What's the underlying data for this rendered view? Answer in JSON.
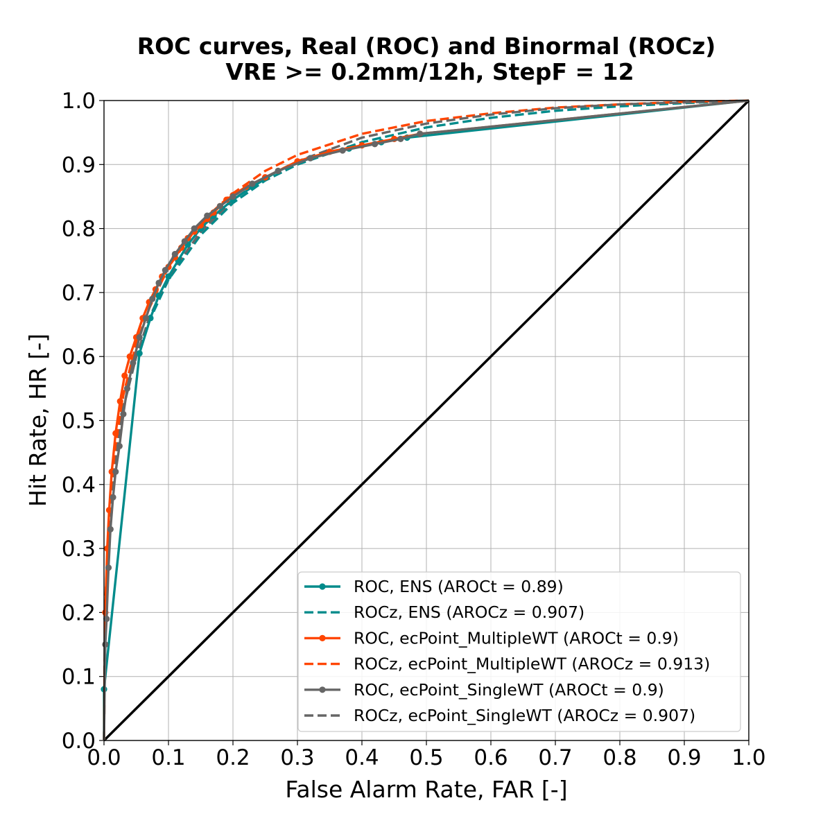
{
  "chart_data": {
    "type": "line",
    "title": "ROC curves, Real (ROC) and Binormal (ROCz)",
    "subtitle": "VRE >= 0.2mm/12h, StepF = 12",
    "xlabel": "False Alarm Rate, FAR [-]",
    "ylabel": "Hit Rate, HR [-]",
    "xlim": [
      0,
      1
    ],
    "ylim": [
      0,
      1
    ],
    "xticks": [
      "0.0",
      "0.1",
      "0.2",
      "0.3",
      "0.4",
      "0.5",
      "0.6",
      "0.7",
      "0.8",
      "0.9",
      "1.0"
    ],
    "yticks": [
      "0.0",
      "0.1",
      "0.2",
      "0.3",
      "0.4",
      "0.5",
      "0.6",
      "0.7",
      "0.8",
      "0.9",
      "1.0"
    ],
    "grid": true,
    "legend_position": "lower-right",
    "series": [
      {
        "name": "ROC, ENS (AROCt = 0.89)",
        "color": "#008B8B",
        "style": "solid",
        "markers": true,
        "points": [
          [
            0.0,
            0.0
          ],
          [
            0.0,
            0.08
          ],
          [
            0.055,
            0.605
          ],
          [
            0.072,
            0.66
          ],
          [
            0.085,
            0.695
          ],
          [
            0.1,
            0.725
          ],
          [
            0.115,
            0.75
          ],
          [
            0.13,
            0.775
          ],
          [
            0.15,
            0.8
          ],
          [
            0.17,
            0.82
          ],
          [
            0.2,
            0.845
          ],
          [
            0.23,
            0.865
          ],
          [
            0.27,
            0.89
          ],
          [
            0.32,
            0.91
          ],
          [
            0.38,
            0.925
          ],
          [
            0.43,
            0.935
          ],
          [
            0.47,
            0.942
          ],
          [
            1.0,
            1.0
          ]
        ]
      },
      {
        "name": "ROCz, ENS (AROCz = 0.907)",
        "color": "#008B8B",
        "style": "dashed",
        "markers": false,
        "points": [
          [
            0.0,
            0.0
          ],
          [
            0.002,
            0.2
          ],
          [
            0.01,
            0.35
          ],
          [
            0.02,
            0.45
          ],
          [
            0.03,
            0.52
          ],
          [
            0.05,
            0.6
          ],
          [
            0.07,
            0.655
          ],
          [
            0.1,
            0.72
          ],
          [
            0.15,
            0.79
          ],
          [
            0.2,
            0.84
          ],
          [
            0.25,
            0.875
          ],
          [
            0.3,
            0.9
          ],
          [
            0.4,
            0.935
          ],
          [
            0.5,
            0.958
          ],
          [
            0.6,
            0.973
          ],
          [
            0.7,
            0.984
          ],
          [
            0.8,
            0.991
          ],
          [
            0.9,
            0.996
          ],
          [
            1.0,
            1.0
          ]
        ]
      },
      {
        "name": "ROC, ecPoint_MultipleWT (AROCt = 0.9)",
        "color": "#FF4500",
        "style": "solid",
        "markers": true,
        "points": [
          [
            0.0,
            0.0
          ],
          [
            0.002,
            0.2
          ],
          [
            0.005,
            0.3
          ],
          [
            0.008,
            0.36
          ],
          [
            0.012,
            0.42
          ],
          [
            0.018,
            0.48
          ],
          [
            0.025,
            0.53
          ],
          [
            0.032,
            0.57
          ],
          [
            0.04,
            0.6
          ],
          [
            0.05,
            0.63
          ],
          [
            0.06,
            0.66
          ],
          [
            0.07,
            0.685
          ],
          [
            0.08,
            0.705
          ],
          [
            0.09,
            0.725
          ],
          [
            0.1,
            0.74
          ],
          [
            0.11,
            0.755
          ],
          [
            0.12,
            0.77
          ],
          [
            0.13,
            0.785
          ],
          [
            0.14,
            0.795
          ],
          [
            0.15,
            0.805
          ],
          [
            0.16,
            0.815
          ],
          [
            0.17,
            0.825
          ],
          [
            0.18,
            0.835
          ],
          [
            0.19,
            0.845
          ],
          [
            0.2,
            0.852
          ],
          [
            0.22,
            0.865
          ],
          [
            0.25,
            0.88
          ],
          [
            0.3,
            0.905
          ],
          [
            0.35,
            0.92
          ],
          [
            0.4,
            0.93
          ],
          [
            0.45,
            0.94
          ],
          [
            0.49,
            0.948
          ],
          [
            1.0,
            1.0
          ]
        ]
      },
      {
        "name": "ROCz, ecPoint_MultipleWT (AROCz = 0.913)",
        "color": "#FF4500",
        "style": "dashed",
        "markers": false,
        "points": [
          [
            0.0,
            0.0
          ],
          [
            0.002,
            0.22
          ],
          [
            0.01,
            0.37
          ],
          [
            0.02,
            0.47
          ],
          [
            0.03,
            0.54
          ],
          [
            0.05,
            0.62
          ],
          [
            0.07,
            0.675
          ],
          [
            0.1,
            0.74
          ],
          [
            0.15,
            0.81
          ],
          [
            0.2,
            0.855
          ],
          [
            0.25,
            0.89
          ],
          [
            0.3,
            0.915
          ],
          [
            0.4,
            0.948
          ],
          [
            0.5,
            0.968
          ],
          [
            0.6,
            0.98
          ],
          [
            0.7,
            0.989
          ],
          [
            0.8,
            0.994
          ],
          [
            0.9,
            0.998
          ],
          [
            1.0,
            1.0
          ]
        ]
      },
      {
        "name": "ROC, ecPoint_SingleWT (AROCt = 0.9)",
        "color": "#666666",
        "style": "solid",
        "markers": true,
        "points": [
          [
            0.0,
            0.0
          ],
          [
            0.002,
            0.15
          ],
          [
            0.004,
            0.19
          ],
          [
            0.007,
            0.27
          ],
          [
            0.01,
            0.33
          ],
          [
            0.014,
            0.38
          ],
          [
            0.018,
            0.42
          ],
          [
            0.024,
            0.46
          ],
          [
            0.03,
            0.51
          ],
          [
            0.036,
            0.55
          ],
          [
            0.045,
            0.59
          ],
          [
            0.055,
            0.63
          ],
          [
            0.065,
            0.66
          ],
          [
            0.075,
            0.69
          ],
          [
            0.085,
            0.715
          ],
          [
            0.095,
            0.735
          ],
          [
            0.11,
            0.76
          ],
          [
            0.125,
            0.78
          ],
          [
            0.14,
            0.8
          ],
          [
            0.16,
            0.82
          ],
          [
            0.18,
            0.835
          ],
          [
            0.2,
            0.85
          ],
          [
            0.23,
            0.87
          ],
          [
            0.27,
            0.89
          ],
          [
            0.32,
            0.91
          ],
          [
            0.37,
            0.922
          ],
          [
            0.42,
            0.932
          ],
          [
            0.46,
            0.94
          ],
          [
            0.49,
            0.948
          ],
          [
            1.0,
            1.0
          ]
        ]
      },
      {
        "name": "ROCz, ecPoint_SingleWT (AROCz = 0.907)",
        "color": "#666666",
        "style": "dashed",
        "markers": false,
        "points": [
          [
            0.0,
            0.0
          ],
          [
            0.002,
            0.2
          ],
          [
            0.01,
            0.35
          ],
          [
            0.02,
            0.45
          ],
          [
            0.03,
            0.52
          ],
          [
            0.05,
            0.6
          ],
          [
            0.07,
            0.66
          ],
          [
            0.1,
            0.725
          ],
          [
            0.15,
            0.795
          ],
          [
            0.2,
            0.845
          ],
          [
            0.25,
            0.88
          ],
          [
            0.3,
            0.905
          ],
          [
            0.4,
            0.942
          ],
          [
            0.5,
            0.964
          ],
          [
            0.6,
            0.978
          ],
          [
            0.7,
            0.988
          ],
          [
            0.8,
            0.994
          ],
          [
            0.9,
            0.997
          ],
          [
            1.0,
            1.0
          ]
        ]
      },
      {
        "name": "",
        "color": "#000000",
        "style": "solid",
        "markers": false,
        "points": [
          [
            0.0,
            0.0
          ],
          [
            1.0,
            1.0
          ]
        ]
      }
    ]
  }
}
